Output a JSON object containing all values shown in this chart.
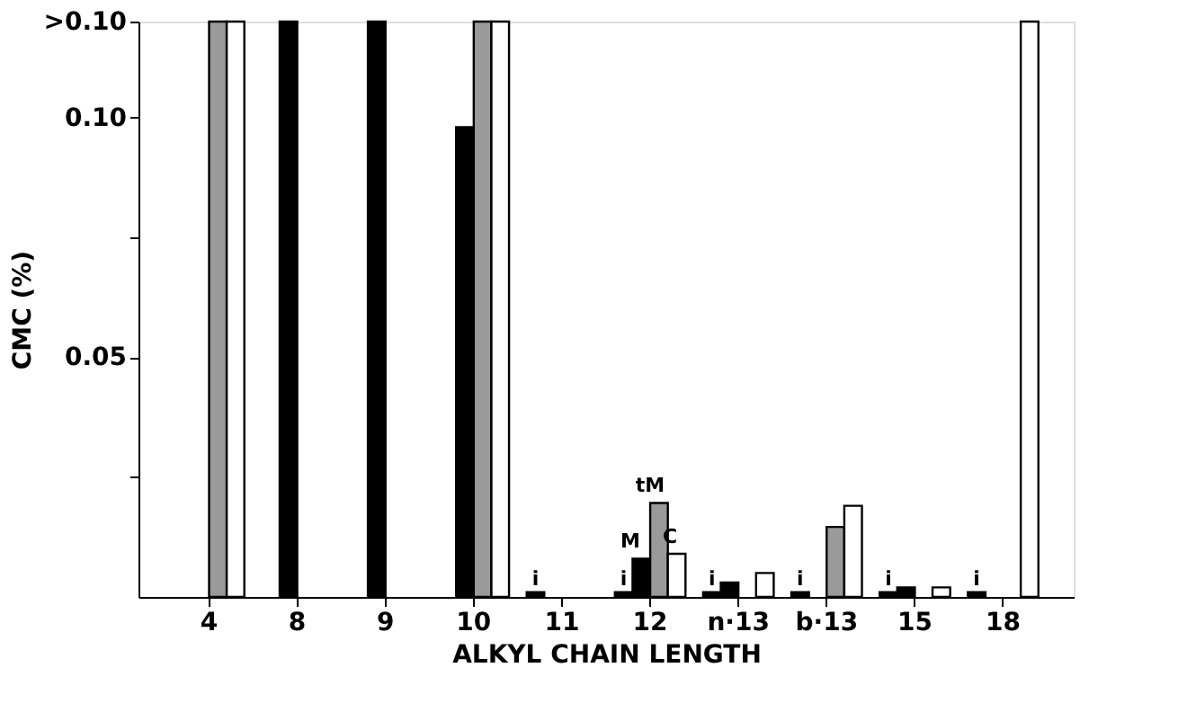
{
  "chart_data": {
    "type": "bar",
    "xlabel": "ALKYL CHAIN LENGTH",
    "ylabel": "CMC (%)",
    "categories": [
      "4",
      "8",
      "9",
      "10",
      "11",
      "12",
      "n·13",
      "b·13",
      "15",
      "18"
    ],
    "series": [
      {
        "color": "#000000",
        "values": [
          null,
          null,
          null,
          null,
          0.001,
          0.001,
          0.001,
          0.001,
          0.001,
          0.001
        ],
        "value_labels": [
          null,
          null,
          null,
          null,
          "i",
          "i",
          "i",
          "i",
          "i",
          "i"
        ]
      },
      {
        "color": "#000000",
        "values": [
          null,
          0.12,
          0.12,
          0.098,
          null,
          0.008,
          0.003,
          null,
          0.002,
          null
        ]
      },
      {
        "color": "#9a9a9a",
        "values": [
          0.12,
          null,
          null,
          0.12,
          null,
          0.0196,
          null,
          0.0146,
          null,
          null
        ]
      },
      {
        "color": "#ffffff",
        "values": [
          0.12,
          null,
          null,
          0.12,
          null,
          0.009,
          0.005,
          0.019,
          0.002,
          0.12
        ]
      }
    ],
    "annotations": [
      {
        "text": "M",
        "x": "12",
        "y": 0.008
      },
      {
        "text": "tM",
        "x": "12",
        "y": 0.0196
      },
      {
        "text": "C",
        "x": "12",
        "y": 0.009
      }
    ],
    "ylim": [
      0,
      0.12
    ],
    "yticks": [
      {
        "value": 0.025,
        "label": null
      },
      0.05,
      {
        "value": 0.075,
        "label": null
      },
      {
        "value": 0.1,
        "label": "0.10"
      },
      {
        "value": 0.12,
        "label": ">0.10"
      }
    ],
    "grid": false
  }
}
